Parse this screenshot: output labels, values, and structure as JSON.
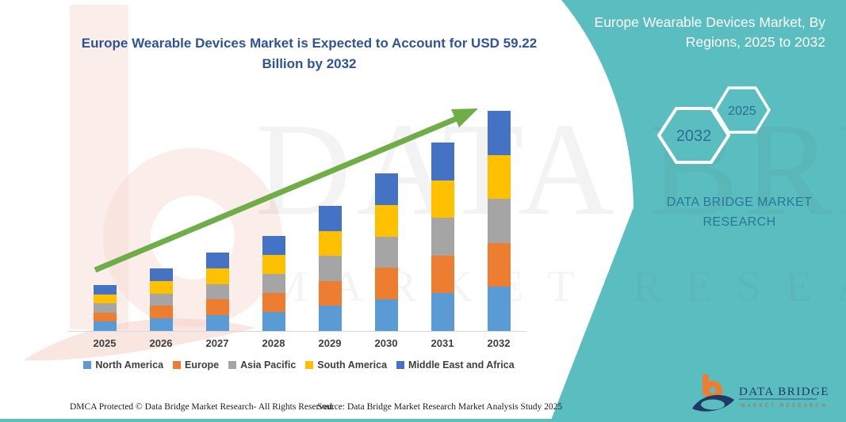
{
  "header": {
    "title": "Europe Wearable Devices Market is Expected to Account for USD 59.22 Billion by 2032"
  },
  "side_panel": {
    "heading": "Europe Wearable Devices Market, By Regions, 2025 to 2032",
    "hexagons": [
      {
        "label": "2032"
      },
      {
        "label": "2025"
      }
    ],
    "brand_text": "DATA BRIDGE MARKET RESEARCH",
    "accent_color": "#5ABEC1",
    "heading_text_color": "#FFFFFF",
    "hexagon_text_color": "#2B6E94"
  },
  "chart_data": {
    "type": "bar",
    "stacked": true,
    "title": "Europe Wearable Devices Market is Expected to Account for USD 59.22 Billion by 2032",
    "unit": "USD Billion",
    "categories": [
      "2025",
      "2026",
      "2027",
      "2028",
      "2029",
      "2030",
      "2031",
      "2032"
    ],
    "series": [
      {
        "name": "North America",
        "color": "#5B9BD5",
        "values": [
          2.48,
          3.37,
          4.22,
          5.12,
          6.73,
          8.48,
          10.14,
          11.84
        ]
      },
      {
        "name": "Europe",
        "color": "#ED7D31",
        "values": [
          2.48,
          3.37,
          4.22,
          5.12,
          6.73,
          8.48,
          10.14,
          11.84
        ]
      },
      {
        "name": "Asia Pacific",
        "color": "#A5A5A5",
        "values": [
          2.48,
          3.37,
          4.22,
          5.12,
          6.73,
          8.48,
          10.14,
          11.84
        ]
      },
      {
        "name": "South America",
        "color": "#FFC000",
        "values": [
          2.48,
          3.37,
          4.22,
          5.12,
          6.73,
          8.48,
          10.14,
          11.84
        ]
      },
      {
        "name": "Middle East and Africa",
        "color": "#4472C4",
        "values": [
          2.48,
          3.37,
          4.22,
          5.12,
          6.73,
          8.48,
          10.14,
          11.84
        ]
      }
    ],
    "totals_estimated": [
      12.4,
      16.85,
      21.1,
      25.6,
      33.65,
      42.4,
      50.7,
      59.22
    ],
    "highlight_value": "USD 59.22 Billion by 2032",
    "legend_position": "bottom",
    "grid": false,
    "y_axis_visible": false,
    "annotations": [
      "upward green trend arrow"
    ],
    "values_note": "segment values estimated from pixel heights; stacks appear as five equal segments per year"
  },
  "trend_arrow": {
    "color": "#6FAD47"
  },
  "watermark": {
    "line1": "DATA BRIDGE",
    "line2": "MARKET RESEARCH"
  },
  "footer": {
    "dmca": "DMCA Protected © Data Bridge Market Research-  All Rights Reserved.",
    "source": "Source: Data Bridge Market Research  Market Analysis Study 2025"
  },
  "logo": {
    "name": "DATA BRIDGE",
    "subtitle": "MARKET RESEARCH",
    "navy": "#1F3864",
    "orange": "#ED7D31"
  }
}
